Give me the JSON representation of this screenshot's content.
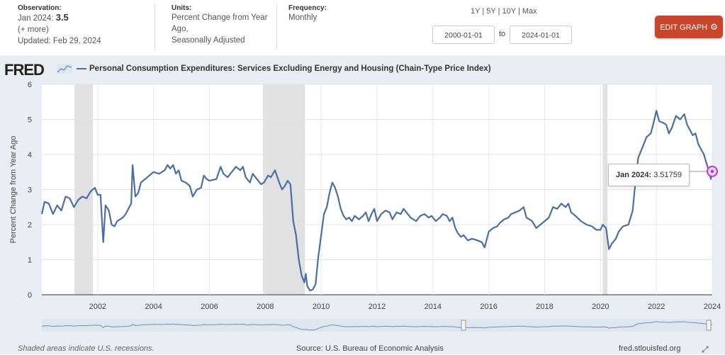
{
  "header": {
    "observation_label": "Observation:",
    "observation_date": "Jan 2024:",
    "observation_value": "3.5",
    "more_link": "(+ more)",
    "updated": "Updated: Feb 29, 2024",
    "units_label": "Units:",
    "units_line1": "Percent Change from Year",
    "units_line2": "Ago,",
    "units_line3": "Seasonally Adjusted",
    "frequency_label": "Frequency:",
    "frequency_value": "Monthly",
    "range_1y": "1Y",
    "range_5y": "5Y",
    "range_10y": "10Y",
    "range_max": "Max",
    "range_sep": "|",
    "start_date": "2000-01-01",
    "to_label": "to",
    "end_date": "2024-01-01",
    "edit_button": "EDIT GRAPH",
    "edit_icon": "gear-icon",
    "accent_color": "#c9452c"
  },
  "brand": {
    "logo_text": "FRED"
  },
  "footer": {
    "recession_note": "Shaded areas indicate U.S. recessions.",
    "source": "Source: U.S. Bureau of Economic Analysis",
    "site": "fred.stlouisfed.org",
    "fullscreen_icon": "expand-icon"
  },
  "tooltip": {
    "date": "Jan 2024:",
    "value": "3.51759"
  },
  "chart_data": {
    "type": "line",
    "title": "Personal Consumption Expenditures: Services Excluding Energy and Housing (Chain-Type Price Index)",
    "xlabel": "",
    "ylabel": "Percent Change from Year Ago",
    "xlim": [
      2000.0,
      2024.0
    ],
    "ylim": [
      0,
      6
    ],
    "yticks": [
      0,
      1,
      2,
      3,
      4,
      5,
      6
    ],
    "xticks": [
      2002,
      2004,
      2006,
      2008,
      2010,
      2012,
      2014,
      2016,
      2018,
      2020,
      2022,
      2024
    ],
    "grid": true,
    "legend": "top-left",
    "line_color": "#4a6fa5",
    "recessions": [
      [
        2001.17,
        2001.83
      ],
      [
        2007.92,
        2009.42
      ],
      [
        2020.08,
        2020.25
      ]
    ],
    "series": [
      {
        "name": "Personal Consumption Expenditures: Services Excluding Energy and Housing (Chain-Type Price Index)",
        "points": [
          [
            2000.0,
            2.3
          ],
          [
            2000.1,
            2.65
          ],
          [
            2000.25,
            2.6
          ],
          [
            2000.4,
            2.3
          ],
          [
            2000.55,
            2.55
          ],
          [
            2000.7,
            2.4
          ],
          [
            2000.85,
            2.8
          ],
          [
            2001.0,
            2.75
          ],
          [
            2001.15,
            2.5
          ],
          [
            2001.3,
            2.7
          ],
          [
            2001.45,
            2.8
          ],
          [
            2001.6,
            2.75
          ],
          [
            2001.75,
            2.95
          ],
          [
            2001.9,
            3.05
          ],
          [
            2002.0,
            2.85
          ],
          [
            2002.1,
            2.85
          ],
          [
            2002.2,
            1.5
          ],
          [
            2002.28,
            2.55
          ],
          [
            2002.4,
            2.4
          ],
          [
            2002.5,
            2.0
          ],
          [
            2002.6,
            1.95
          ],
          [
            2002.7,
            2.1
          ],
          [
            2002.8,
            2.15
          ],
          [
            2002.9,
            2.2
          ],
          [
            2003.0,
            2.3
          ],
          [
            2003.1,
            2.45
          ],
          [
            2003.2,
            2.6
          ],
          [
            2003.25,
            3.7
          ],
          [
            2003.35,
            2.8
          ],
          [
            2003.45,
            2.9
          ],
          [
            2003.55,
            3.2
          ],
          [
            2003.7,
            3.3
          ],
          [
            2003.85,
            3.4
          ],
          [
            2004.0,
            3.5
          ],
          [
            2004.2,
            3.45
          ],
          [
            2004.4,
            3.55
          ],
          [
            2004.5,
            3.7
          ],
          [
            2004.6,
            3.6
          ],
          [
            2004.7,
            3.7
          ],
          [
            2004.8,
            3.45
          ],
          [
            2004.9,
            3.55
          ],
          [
            2005.0,
            3.25
          ],
          [
            2005.15,
            3.2
          ],
          [
            2005.3,
            3.1
          ],
          [
            2005.4,
            2.8
          ],
          [
            2005.55,
            3.0
          ],
          [
            2005.7,
            3.05
          ],
          [
            2005.8,
            3.4
          ],
          [
            2005.9,
            3.3
          ],
          [
            2006.0,
            3.25
          ],
          [
            2006.25,
            3.3
          ],
          [
            2006.4,
            3.65
          ],
          [
            2006.5,
            3.45
          ],
          [
            2006.65,
            3.35
          ],
          [
            2006.8,
            3.5
          ],
          [
            2006.95,
            3.65
          ],
          [
            2007.1,
            3.55
          ],
          [
            2007.2,
            3.65
          ],
          [
            2007.3,
            3.35
          ],
          [
            2007.45,
            3.2
          ],
          [
            2007.55,
            3.45
          ],
          [
            2007.7,
            3.3
          ],
          [
            2007.85,
            3.15
          ],
          [
            2007.95,
            3.2
          ],
          [
            2008.1,
            3.4
          ],
          [
            2008.2,
            3.35
          ],
          [
            2008.35,
            3.55
          ],
          [
            2008.5,
            3.2
          ],
          [
            2008.6,
            3.0
          ],
          [
            2008.7,
            3.1
          ],
          [
            2008.8,
            3.25
          ],
          [
            2008.9,
            3.15
          ],
          [
            2009.0,
            2.1
          ],
          [
            2009.1,
            1.7
          ],
          [
            2009.2,
            1.0
          ],
          [
            2009.3,
            0.55
          ],
          [
            2009.4,
            0.35
          ],
          [
            2009.45,
            0.6
          ],
          [
            2009.5,
            0.25
          ],
          [
            2009.6,
            0.12
          ],
          [
            2009.7,
            0.15
          ],
          [
            2009.8,
            0.3
          ],
          [
            2009.9,
            1.1
          ],
          [
            2010.0,
            1.7
          ],
          [
            2010.1,
            2.3
          ],
          [
            2010.2,
            2.5
          ],
          [
            2010.3,
            2.9
          ],
          [
            2010.4,
            3.2
          ],
          [
            2010.5,
            3.05
          ],
          [
            2010.6,
            2.8
          ],
          [
            2010.7,
            2.45
          ],
          [
            2010.8,
            2.25
          ],
          [
            2010.9,
            2.15
          ],
          [
            2011.0,
            2.2
          ],
          [
            2011.1,
            2.1
          ],
          [
            2011.2,
            2.25
          ],
          [
            2011.35,
            2.15
          ],
          [
            2011.5,
            2.25
          ],
          [
            2011.6,
            2.35
          ],
          [
            2011.7,
            2.1
          ],
          [
            2011.8,
            2.3
          ],
          [
            2011.9,
            2.45
          ],
          [
            2012.0,
            2.1
          ],
          [
            2012.15,
            2.3
          ],
          [
            2012.3,
            2.4
          ],
          [
            2012.45,
            2.35
          ],
          [
            2012.55,
            2.15
          ],
          [
            2012.7,
            2.35
          ],
          [
            2012.85,
            2.3
          ],
          [
            2012.95,
            2.45
          ],
          [
            2013.1,
            2.3
          ],
          [
            2013.2,
            2.2
          ],
          [
            2013.4,
            2.1
          ],
          [
            2013.55,
            2.25
          ],
          [
            2013.7,
            2.3
          ],
          [
            2013.85,
            2.2
          ],
          [
            2013.95,
            2.25
          ],
          [
            2014.1,
            2.1
          ],
          [
            2014.25,
            2.2
          ],
          [
            2014.35,
            2.3
          ],
          [
            2014.5,
            2.25
          ],
          [
            2014.6,
            2.1
          ],
          [
            2014.7,
            2.2
          ],
          [
            2014.8,
            1.9
          ],
          [
            2014.9,
            1.75
          ],
          [
            2015.0,
            1.65
          ],
          [
            2015.1,
            1.7
          ],
          [
            2015.25,
            1.55
          ],
          [
            2015.4,
            1.6
          ],
          [
            2015.6,
            1.55
          ],
          [
            2015.75,
            1.5
          ],
          [
            2015.85,
            1.35
          ],
          [
            2016.0,
            1.8
          ],
          [
            2016.15,
            1.9
          ],
          [
            2016.3,
            1.95
          ],
          [
            2016.4,
            2.05
          ],
          [
            2016.55,
            2.15
          ],
          [
            2016.7,
            2.2
          ],
          [
            2016.8,
            2.3
          ],
          [
            2016.95,
            2.35
          ],
          [
            2017.1,
            2.4
          ],
          [
            2017.25,
            2.5
          ],
          [
            2017.35,
            2.2
          ],
          [
            2017.55,
            2.1
          ],
          [
            2017.7,
            1.9
          ],
          [
            2017.85,
            2.0
          ],
          [
            2018.0,
            2.1
          ],
          [
            2018.15,
            2.2
          ],
          [
            2018.3,
            2.5
          ],
          [
            2018.45,
            2.45
          ],
          [
            2018.6,
            2.6
          ],
          [
            2018.75,
            2.5
          ],
          [
            2018.85,
            2.6
          ],
          [
            2018.95,
            2.35
          ],
          [
            2019.1,
            2.25
          ],
          [
            2019.3,
            2.1
          ],
          [
            2019.5,
            2.0
          ],
          [
            2019.7,
            1.95
          ],
          [
            2019.85,
            1.85
          ],
          [
            2020.0,
            1.85
          ],
          [
            2020.08,
            2.0
          ],
          [
            2020.2,
            1.9
          ],
          [
            2020.3,
            1.3
          ],
          [
            2020.4,
            1.45
          ],
          [
            2020.55,
            1.6
          ],
          [
            2020.65,
            1.8
          ],
          [
            2020.8,
            1.95
          ],
          [
            2021.0,
            2.0
          ],
          [
            2021.15,
            2.4
          ],
          [
            2021.25,
            3.2
          ],
          [
            2021.35,
            3.9
          ],
          [
            2021.5,
            4.2
          ],
          [
            2021.65,
            4.5
          ],
          [
            2021.8,
            4.6
          ],
          [
            2021.9,
            4.9
          ],
          [
            2022.0,
            5.25
          ],
          [
            2022.1,
            4.95
          ],
          [
            2022.25,
            4.9
          ],
          [
            2022.35,
            4.85
          ],
          [
            2022.45,
            4.6
          ],
          [
            2022.55,
            4.75
          ],
          [
            2022.7,
            5.1
          ],
          [
            2022.85,
            5.0
          ],
          [
            2023.0,
            5.15
          ],
          [
            2023.1,
            4.85
          ],
          [
            2023.2,
            4.7
          ],
          [
            2023.3,
            4.55
          ],
          [
            2023.4,
            4.6
          ],
          [
            2023.5,
            4.3
          ],
          [
            2023.6,
            4.15
          ],
          [
            2023.7,
            4.0
          ],
          [
            2023.85,
            3.6
          ],
          [
            2023.95,
            3.3
          ],
          [
            2024.0,
            3.52
          ]
        ]
      }
    ],
    "callout": {
      "x": 2024.0,
      "y": 3.51759,
      "label": "Jan 2024: 3.51759"
    }
  }
}
